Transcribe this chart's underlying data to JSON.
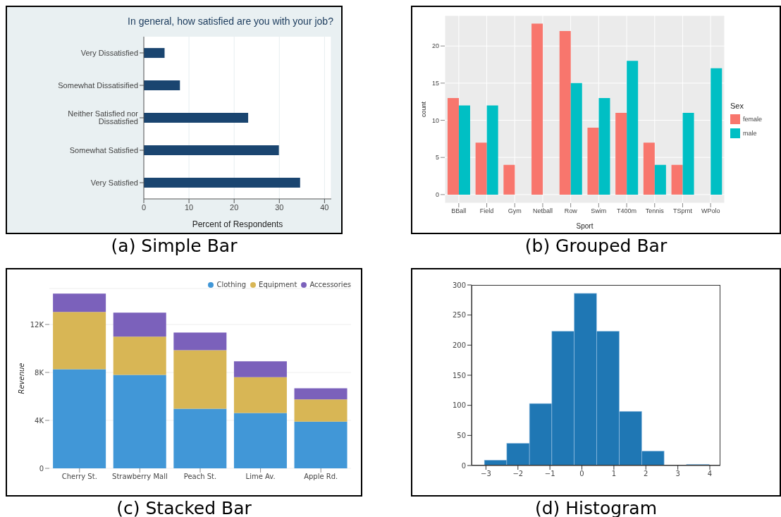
{
  "chart_data": [
    {
      "type": "bar",
      "orientation": "horizontal",
      "title": "In general, how satisfied are you with your job?",
      "xlabel": "Percent of Respondents",
      "categories": [
        "Very Dissatisfied",
        "Somewhat Dissatisified",
        "Neither Satisfied nor Dissatisfied",
        "Somewhat Satisfied",
        "Very Satisfied"
      ],
      "values": [
        4.6,
        8,
        23.1,
        29.9,
        34.6
      ],
      "color": "#1a4570",
      "xlim": [
        0,
        41.5
      ],
      "xticks": [
        0,
        10,
        20,
        30,
        40
      ],
      "grid": "x",
      "annotations": [
        "(a) Simple Bar"
      ]
    },
    {
      "type": "bar",
      "xlabel": "Sport",
      "ylabel": "count",
      "legend_title": "Sex",
      "legend": "right",
      "categories": [
        "BBall",
        "Field",
        "Gym",
        "Netball",
        "Row",
        "Swim",
        "T400m",
        "Tennis",
        "TSprnt",
        "WPolo"
      ],
      "series": [
        {
          "name": "female",
          "color": "#f8766d",
          "values": [
            13,
            7,
            4,
            23,
            22,
            9,
            11,
            7,
            4,
            null
          ]
        },
        {
          "name": "male",
          "color": "#00bfc4",
          "values": [
            12,
            12,
            null,
            null,
            15,
            13,
            18,
            4,
            11,
            17
          ]
        }
      ],
      "ylim": [
        -1.15,
        24.1
      ],
      "yticks": [
        0,
        5,
        10,
        15,
        20
      ],
      "grid": true,
      "annotations": [
        "(b) Grouped Bar"
      ]
    },
    {
      "type": "bar",
      "stacked": true,
      "ylabel": "Revenue",
      "legend": "top right",
      "categories": [
        "Cherry St.",
        "Strawberry Mall",
        "Peach St.",
        "Lime Av.",
        "Apple Rd."
      ],
      "series": [
        {
          "name": "Clothing",
          "color": "#4197d7",
          "values": [
            8270,
            7800,
            4970,
            4620,
            3890
          ]
        },
        {
          "name": "Equipment",
          "color": "#d8b655",
          "values": [
            4780,
            3190,
            4890,
            2980,
            1860
          ]
        },
        {
          "name": "Accessories",
          "color": "#7b61bb",
          "values": [
            1520,
            1990,
            1460,
            1330,
            930
          ]
        }
      ],
      "ylim": [
        0,
        15000
      ],
      "yticks": [
        0,
        {
          "value": 4000,
          "label": "4K"
        },
        {
          "value": 8000,
          "label": "8K"
        },
        {
          "value": 12000,
          "label": "12K"
        }
      ],
      "grid": "y",
      "annotations": [
        "(c) Stacked Bar"
      ]
    },
    {
      "type": "histogram",
      "color": "#1f77b4",
      "bins": [
        -3.05,
        -2.35,
        -1.64,
        -0.94,
        -0.24,
        0.46,
        1.17,
        1.87,
        2.57,
        3.27,
        3.98
      ],
      "values": [
        9,
        37,
        103,
        223,
        286,
        223,
        90,
        24,
        0,
        2
      ],
      "xlim": [
        -3.45,
        4.33
      ],
      "xticks": [
        {
          "value": -3,
          "label": "−3"
        },
        {
          "value": -2,
          "label": "−2"
        },
        {
          "value": -1,
          "label": "−1"
        },
        0,
        1,
        2,
        3,
        4
      ],
      "ylim": [
        0,
        300
      ],
      "yticks": [
        0,
        50,
        100,
        150,
        200,
        250,
        300
      ],
      "annotations": [
        "(d) Histogram"
      ]
    }
  ]
}
